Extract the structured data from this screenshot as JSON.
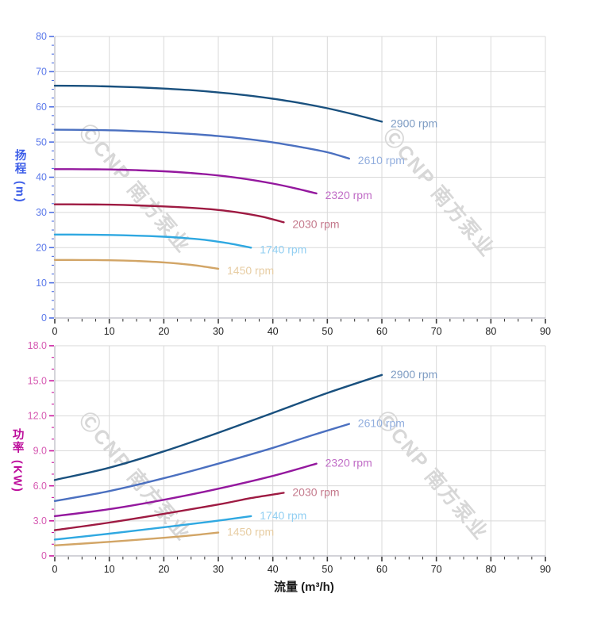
{
  "watermark": {
    "text": "ⒸCNP 南方泵业",
    "color": "#d7d7d7"
  },
  "x_axis_title": "流量 (m³/h)",
  "chart_data": [
    {
      "type": "line",
      "id": "head",
      "title": "",
      "ylabel": "扬程",
      "ylabel_unit": "(m)",
      "xlabel": "流量 (m³/h)",
      "xlim": [
        0,
        90
      ],
      "ylim": [
        0,
        80
      ],
      "x_major_step": 10,
      "x_minor_step": 2.5,
      "y_major_step": 10,
      "y_minor_step": 2.5,
      "x_tick_labels": [
        "0",
        "10",
        "20",
        "30",
        "40",
        "50",
        "60",
        "70",
        "80",
        "90"
      ],
      "y_tick_labels": [
        "0",
        "10",
        "20",
        "30",
        "40",
        "50",
        "60",
        "70",
        "80"
      ],
      "grid": true,
      "axis_color": "#4f6fe2",
      "tick_label_color": "#5b79ea",
      "title_color": "#3b5ce8",
      "legend_position": "end-of-line",
      "series": [
        {
          "name": "2900 rpm",
          "color": "#19507e",
          "label_color": "#7e9cc3",
          "points": [
            [
              0,
              66
            ],
            [
              5,
              65.95
            ],
            [
              10,
              65.8
            ],
            [
              15,
              65.55
            ],
            [
              20,
              65.2
            ],
            [
              25,
              64.75
            ],
            [
              30,
              64.1
            ],
            [
              35,
              63.3
            ],
            [
              40,
              62.3
            ],
            [
              45,
              61.1
            ],
            [
              50,
              59.6
            ],
            [
              55,
              57.8
            ],
            [
              60,
              55.8
            ]
          ]
        },
        {
          "name": "2610 rpm",
          "color": "#4b70c0",
          "label_color": "#92aede",
          "points": [
            [
              0,
              53.5
            ],
            [
              5,
              53.45
            ],
            [
              10,
              53.35
            ],
            [
              15,
              53.1
            ],
            [
              20,
              52.75
            ],
            [
              25,
              52.3
            ],
            [
              30,
              51.7
            ],
            [
              35,
              50.9
            ],
            [
              40,
              49.9
            ],
            [
              45,
              48.6
            ],
            [
              50,
              47.1
            ],
            [
              54,
              45.3
            ]
          ]
        },
        {
          "name": "2320 rpm",
          "color": "#94189e",
          "label_color": "#c06cc6",
          "points": [
            [
              0,
              42.3
            ],
            [
              5,
              42.28
            ],
            [
              10,
              42.2
            ],
            [
              15,
              42.0
            ],
            [
              20,
              41.7
            ],
            [
              25,
              41.2
            ],
            [
              30,
              40.5
            ],
            [
              35,
              39.5
            ],
            [
              40,
              38.2
            ],
            [
              44,
              36.9
            ],
            [
              48,
              35.4
            ]
          ]
        },
        {
          "name": "2030 rpm",
          "color": "#9e1a42",
          "label_color": "#c4798c",
          "points": [
            [
              0,
              32.3
            ],
            [
              5,
              32.28
            ],
            [
              10,
              32.2
            ],
            [
              15,
              32.0
            ],
            [
              20,
              31.7
            ],
            [
              25,
              31.3
            ],
            [
              30,
              30.7
            ],
            [
              34,
              29.9
            ],
            [
              38,
              28.8
            ],
            [
              42,
              27.2
            ]
          ]
        },
        {
          "name": "1740 rpm",
          "color": "#2fa8e1",
          "label_color": "#92cff2",
          "points": [
            [
              0,
              23.7
            ],
            [
              5,
              23.68
            ],
            [
              10,
              23.6
            ],
            [
              15,
              23.4
            ],
            [
              20,
              23.1
            ],
            [
              24,
              22.7
            ],
            [
              28,
              22.1
            ],
            [
              32,
              21.2
            ],
            [
              36,
              20.0
            ]
          ]
        },
        {
          "name": "1450 rpm",
          "color": "#d2a566",
          "label_color": "#e7cda3",
          "points": [
            [
              0,
              16.5
            ],
            [
              5,
              16.48
            ],
            [
              10,
              16.4
            ],
            [
              15,
              16.2
            ],
            [
              20,
              15.8
            ],
            [
              25,
              15.1
            ],
            [
              30,
              14.0
            ]
          ]
        }
      ]
    },
    {
      "type": "line",
      "id": "power",
      "title": "",
      "ylabel": "功率",
      "ylabel_unit": "(KW)",
      "xlabel": "流量 (m³/h)",
      "xlim": [
        0,
        90
      ],
      "ylim": [
        0,
        18
      ],
      "x_major_step": 10,
      "x_minor_step": 2.5,
      "y_major_step": 3,
      "y_minor_step": 1,
      "x_tick_labels": [
        "0",
        "10",
        "20",
        "30",
        "40",
        "50",
        "60",
        "70",
        "80",
        "90"
      ],
      "y_tick_labels": [
        "0",
        "3.0",
        "6.0",
        "9.0",
        "12.0",
        "15.0",
        "18.0"
      ],
      "grid": true,
      "axis_color": "#c8169d",
      "tick_label_color": "#d65ab2",
      "title_color": "#bd0d9b",
      "legend_position": "end-of-line",
      "series": [
        {
          "name": "2900 rpm",
          "color": "#19507e",
          "label_color": "#7e9cc3",
          "points": [
            [
              0,
              6.5
            ],
            [
              10,
              7.55
            ],
            [
              20,
              8.95
            ],
            [
              30,
              10.55
            ],
            [
              40,
              12.25
            ],
            [
              50,
              13.95
            ],
            [
              60,
              15.5
            ]
          ]
        },
        {
          "name": "2610 rpm",
          "color": "#4b70c0",
          "label_color": "#92aede",
          "points": [
            [
              0,
              4.7
            ],
            [
              10,
              5.55
            ],
            [
              20,
              6.65
            ],
            [
              30,
              7.9
            ],
            [
              40,
              9.25
            ],
            [
              47,
              10.3
            ],
            [
              54,
              11.3
            ]
          ]
        },
        {
          "name": "2320 rpm",
          "color": "#94189e",
          "label_color": "#c06cc6",
          "points": [
            [
              0,
              3.4
            ],
            [
              10,
              4.0
            ],
            [
              20,
              4.8
            ],
            [
              30,
              5.75
            ],
            [
              40,
              6.85
            ],
            [
              48,
              7.9
            ]
          ]
        },
        {
          "name": "2030 rpm",
          "color": "#9e1a42",
          "label_color": "#c4798c",
          "points": [
            [
              0,
              2.2
            ],
            [
              10,
              2.85
            ],
            [
              20,
              3.6
            ],
            [
              30,
              4.4
            ],
            [
              36,
              4.95
            ],
            [
              42,
              5.4
            ]
          ]
        },
        {
          "name": "1740 rpm",
          "color": "#2fa8e1",
          "label_color": "#92cff2",
          "points": [
            [
              0,
              1.4
            ],
            [
              10,
              1.9
            ],
            [
              20,
              2.45
            ],
            [
              28,
              2.9
            ],
            [
              36,
              3.4
            ]
          ]
        },
        {
          "name": "1450 rpm",
          "color": "#d2a566",
          "label_color": "#e7cda3",
          "points": [
            [
              0,
              0.9
            ],
            [
              10,
              1.2
            ],
            [
              20,
              1.55
            ],
            [
              25,
              1.75
            ],
            [
              30,
              2.0
            ]
          ]
        }
      ]
    }
  ]
}
